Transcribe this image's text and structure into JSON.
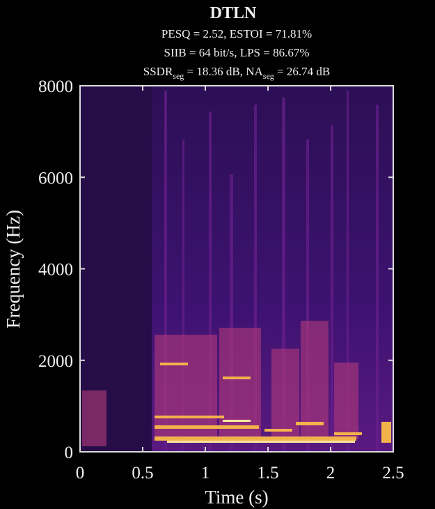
{
  "chart_data": {
    "type": "spectrogram",
    "title": "DTLN",
    "subtitle": [
      "PESQ = 2.52, ESTOI = 71.81%",
      "SIIB = 64 bit/s, LPS = 86.67%",
      [
        "SSDR",
        "seg",
        " = 18.36 dB, NA",
        "seg",
        " = 26.74 dB"
      ]
    ],
    "x_label": "Time (s)",
    "y_label": "Frequency (Hz)",
    "xlim": [
      0,
      2.5
    ],
    "xticks": [
      0,
      0.5,
      1,
      1.5,
      2,
      2.5
    ],
    "ylim": [
      0,
      8000
    ],
    "yticks": [
      0,
      2000,
      4000,
      6000,
      8000
    ]
  }
}
